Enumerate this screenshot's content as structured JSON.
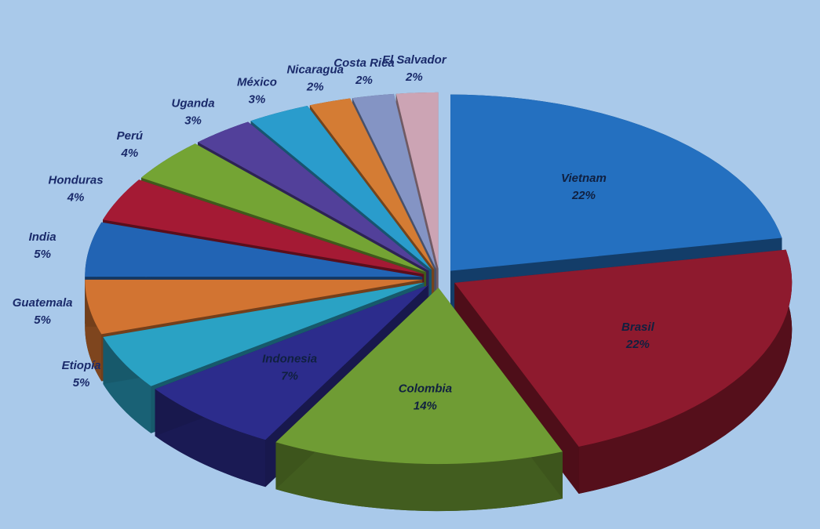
{
  "chart_data": {
    "type": "pie",
    "categories": [
      "Vietnam",
      "Brasil",
      "Colombia",
      "Indonesia",
      "Etiopía",
      "Guatemala",
      "India",
      "Honduras",
      "Perú",
      "Uganda",
      "México",
      "Nicaragua",
      "Costa Rica",
      "El Salvador"
    ],
    "values": [
      22,
      22,
      14,
      7,
      5,
      5,
      5,
      4,
      4,
      3,
      3,
      2,
      2,
      2
    ],
    "value_labels": [
      "22%",
      "22%",
      "14%",
      "7%",
      "5%",
      "5%",
      "5%",
      "4%",
      "4%",
      "3%",
      "3%",
      "2%",
      "2%",
      "2%"
    ],
    "colors": [
      "#2470c0",
      "#8e1a2e",
      "#6f9c34",
      "#2c2c8c",
      "#2aa2c4",
      "#d27432",
      "#2264b4",
      "#a41a34",
      "#74a434",
      "#52409a",
      "#2a9ccc",
      "#d47c34",
      "#8494c4",
      "#cca4b4"
    ]
  }
}
